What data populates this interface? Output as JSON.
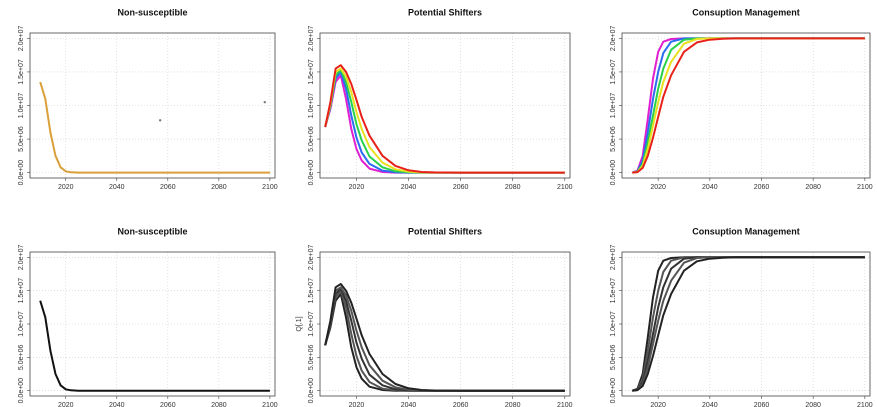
{
  "chart_data": [
    {
      "type": "line",
      "title": "Non-susceptible",
      "x": [
        2008,
        2010,
        2012,
        2014,
        2016,
        2018,
        2020,
        2022,
        2025,
        2030,
        2035,
        2040,
        2045,
        2050,
        2060,
        2080,
        2100
      ],
      "series": [
        {
          "color": "#d9a03a",
          "values": [
            null,
            13500000,
            11000000,
            6000000,
            2500000,
            800000,
            200000,
            50000,
            0,
            0,
            0,
            0,
            0,
            0,
            0,
            0,
            0
          ]
        }
      ],
      "points": {
        "x": [
          2057,
          2098
        ],
        "y": [
          7800000,
          10500000
        ],
        "color": "#777777"
      },
      "xlim": [
        2006,
        2102
      ],
      "ylim": [
        -800000,
        20800000
      ],
      "xticks": [
        2020,
        2040,
        2060,
        2080,
        2100
      ],
      "yticks": [
        {
          "value": 0,
          "label": "0.0e+00"
        },
        {
          "value": 5000000,
          "label": "5.0e+06"
        },
        {
          "value": 10000000,
          "label": "1.0e+07"
        },
        {
          "value": 15000000,
          "label": "1.5e+07"
        },
        {
          "value": 20000000,
          "label": "2.0e+07"
        }
      ],
      "grid": true
    },
    {
      "type": "line",
      "title": "Potential Shifters",
      "x": [
        2008,
        2010,
        2012,
        2014,
        2016,
        2018,
        2020,
        2022,
        2025,
        2030,
        2035,
        2040,
        2045,
        2050,
        2060,
        2080,
        2100
      ],
      "series": [
        {
          "color": "#e01fd0",
          "values": [
            6800000,
            9500000,
            13500000,
            14500000,
            11000000,
            6500000,
            3500000,
            1800000,
            600000,
            100000,
            0,
            0,
            0,
            0,
            0,
            0,
            0
          ]
        },
        {
          "color": "#2a6cf0",
          "values": [
            6800000,
            9800000,
            14000000,
            15000000,
            12500000,
            8500000,
            5200000,
            3000000,
            1300000,
            300000,
            50000,
            0,
            0,
            0,
            0,
            0,
            0
          ]
        },
        {
          "color": "#27d14a",
          "values": [
            6800000,
            10000000,
            14500000,
            15300000,
            13500000,
            10500000,
            7200000,
            4800000,
            2400000,
            800000,
            200000,
            50000,
            0,
            0,
            0,
            0,
            0
          ]
        },
        {
          "color": "#e8e020",
          "values": [
            6800000,
            10200000,
            15000000,
            15500000,
            14300000,
            12000000,
            9000000,
            6500000,
            3800000,
            1500000,
            500000,
            150000,
            30000,
            0,
            0,
            0,
            0
          ]
        },
        {
          "color": "#e8201a",
          "values": [
            6800000,
            10500000,
            15500000,
            16000000,
            15000000,
            13200000,
            10800000,
            8300000,
            5500000,
            2500000,
            1000000,
            350000,
            100000,
            30000,
            0,
            0,
            0
          ]
        }
      ],
      "xlim": [
        2006,
        2102
      ],
      "ylim": [
        -800000,
        20800000
      ],
      "xticks": [
        2020,
        2040,
        2060,
        2080,
        2100
      ],
      "yticks": [
        {
          "value": 0,
          "label": "0.0e+00"
        },
        {
          "value": 5000000,
          "label": "5.0e+06"
        },
        {
          "value": 10000000,
          "label": "1.0e+07"
        },
        {
          "value": 15000000,
          "label": "1.5e+07"
        },
        {
          "value": 20000000,
          "label": "2.0e+07"
        }
      ],
      "grid": true
    },
    {
      "type": "line",
      "title": "Consuption Management",
      "x": [
        2008,
        2010,
        2012,
        2014,
        2016,
        2018,
        2020,
        2022,
        2025,
        2030,
        2035,
        2040,
        2045,
        2050,
        2060,
        2080,
        2100
      ],
      "series": [
        {
          "color": "#e01fd0",
          "values": [
            null,
            0,
            300000,
            2500000,
            8000000,
            14000000,
            18000000,
            19500000,
            19900000,
            20000000,
            20000000,
            20000000,
            20000000,
            20000000,
            20000000,
            20000000,
            20000000
          ]
        },
        {
          "color": "#2a6cf0",
          "values": [
            null,
            0,
            200000,
            1800000,
            6000000,
            11000000,
            15000000,
            17800000,
            19500000,
            20000000,
            20000000,
            20000000,
            20000000,
            20000000,
            20000000,
            20000000,
            20000000
          ]
        },
        {
          "color": "#27d14a",
          "values": [
            null,
            0,
            150000,
            1300000,
            4500000,
            8500000,
            12500000,
            15500000,
            18300000,
            19800000,
            20000000,
            20000000,
            20000000,
            20000000,
            20000000,
            20000000,
            20000000
          ]
        },
        {
          "color": "#e8e020",
          "values": [
            null,
            0,
            100000,
            1000000,
            3500000,
            7000000,
            10500000,
            13500000,
            16500000,
            19200000,
            19900000,
            20000000,
            20000000,
            20000000,
            20000000,
            20000000,
            20000000
          ]
        },
        {
          "color": "#e8201a",
          "values": [
            null,
            0,
            80000,
            700000,
            2500000,
            5200000,
            8300000,
            11300000,
            14500000,
            18000000,
            19400000,
            19800000,
            19950000,
            20000000,
            20000000,
            20000000,
            20000000
          ]
        }
      ],
      "xlim": [
        2006,
        2102
      ],
      "ylim": [
        -800000,
        20800000
      ],
      "xticks": [
        2020,
        2040,
        2060,
        2080,
        2100
      ],
      "yticks": [
        {
          "value": 0,
          "label": "0.0e+00"
        },
        {
          "value": 5000000,
          "label": "5.0e+06"
        },
        {
          "value": 10000000,
          "label": "1.0e+07"
        },
        {
          "value": 15000000,
          "label": "1.5e+07"
        },
        {
          "value": 20000000,
          "label": "2.0e+07"
        }
      ],
      "grid": true
    },
    {
      "type": "line",
      "title": "Non-susceptible",
      "x": [
        2008,
        2010,
        2012,
        2014,
        2016,
        2018,
        2020,
        2022,
        2025,
        2030,
        2035,
        2040,
        2045,
        2050,
        2060,
        2080,
        2100
      ],
      "series": [
        {
          "color": "#111111",
          "values": [
            null,
            13500000,
            11000000,
            6000000,
            2500000,
            800000,
            200000,
            50000,
            0,
            0,
            0,
            0,
            0,
            0,
            0,
            0,
            0
          ]
        }
      ],
      "xlim": [
        2006,
        2102
      ],
      "ylim": [
        -800000,
        20800000
      ],
      "xticks": [
        2020,
        2040,
        2060,
        2080,
        2100
      ],
      "yticks": [
        {
          "value": 0,
          "label": "0.0e+00"
        },
        {
          "value": 5000000,
          "label": "5.0e+06"
        },
        {
          "value": 10000000,
          "label": "1.0e+07"
        },
        {
          "value": 15000000,
          "label": "1.5e+07"
        },
        {
          "value": 20000000,
          "label": "2.0e+07"
        }
      ],
      "grid": true
    },
    {
      "type": "line",
      "title": "Potential Shifters",
      "ylabel": "Q[,1]",
      "x": [
        2008,
        2010,
        2012,
        2014,
        2016,
        2018,
        2020,
        2022,
        2025,
        2030,
        2035,
        2040,
        2045,
        2050,
        2060,
        2080,
        2100
      ],
      "series": [
        {
          "color": "#222222",
          "values": [
            6800000,
            9500000,
            13500000,
            14500000,
            11000000,
            6500000,
            3500000,
            1800000,
            600000,
            100000,
            0,
            0,
            0,
            0,
            0,
            0,
            0
          ]
        },
        {
          "color": "#555555",
          "values": [
            6800000,
            9800000,
            14000000,
            15000000,
            12500000,
            8500000,
            5200000,
            3000000,
            1300000,
            300000,
            50000,
            0,
            0,
            0,
            0,
            0,
            0
          ]
        },
        {
          "color": "#333333",
          "values": [
            6800000,
            10000000,
            14500000,
            15300000,
            13500000,
            10500000,
            7200000,
            4800000,
            2400000,
            800000,
            200000,
            50000,
            0,
            0,
            0,
            0,
            0
          ]
        },
        {
          "color": "#555555",
          "values": [
            6800000,
            10200000,
            15000000,
            15500000,
            14300000,
            12000000,
            9000000,
            6500000,
            3800000,
            1500000,
            500000,
            150000,
            30000,
            0,
            0,
            0,
            0
          ]
        },
        {
          "color": "#222222",
          "values": [
            6800000,
            10500000,
            15500000,
            16000000,
            15000000,
            13200000,
            10800000,
            8300000,
            5500000,
            2500000,
            1000000,
            350000,
            100000,
            30000,
            0,
            0,
            0
          ]
        }
      ],
      "xlim": [
        2006,
        2102
      ],
      "ylim": [
        -800000,
        20800000
      ],
      "xticks": [
        2020,
        2040,
        2060,
        2080,
        2100
      ],
      "yticks": [
        {
          "value": 0,
          "label": "0.0e+00"
        },
        {
          "value": 5000000,
          "label": "5.0e+06"
        },
        {
          "value": 10000000,
          "label": "1.0e+07"
        },
        {
          "value": 15000000,
          "label": "1.5e+07"
        },
        {
          "value": 20000000,
          "label": "2.0e+07"
        }
      ],
      "grid": true
    },
    {
      "type": "line",
      "title": "Consuption Management",
      "x": [
        2008,
        2010,
        2012,
        2014,
        2016,
        2018,
        2020,
        2022,
        2025,
        2030,
        2035,
        2040,
        2045,
        2050,
        2060,
        2080,
        2100
      ],
      "series": [
        {
          "color": "#222222",
          "values": [
            null,
            0,
            300000,
            2500000,
            8000000,
            14000000,
            18000000,
            19500000,
            19900000,
            20000000,
            20000000,
            20000000,
            20000000,
            20000000,
            20000000,
            20000000,
            20000000
          ]
        },
        {
          "color": "#555555",
          "values": [
            null,
            0,
            200000,
            1800000,
            6000000,
            11000000,
            15000000,
            17800000,
            19500000,
            20000000,
            20000000,
            20000000,
            20000000,
            20000000,
            20000000,
            20000000,
            20000000
          ]
        },
        {
          "color": "#333333",
          "values": [
            null,
            0,
            150000,
            1300000,
            4500000,
            8500000,
            12500000,
            15500000,
            18300000,
            19800000,
            20000000,
            20000000,
            20000000,
            20000000,
            20000000,
            20000000,
            20000000
          ]
        },
        {
          "color": "#555555",
          "values": [
            null,
            0,
            100000,
            1000000,
            3500000,
            7000000,
            10500000,
            13500000,
            16500000,
            19200000,
            19900000,
            20000000,
            20000000,
            20000000,
            20000000,
            20000000,
            20000000
          ]
        },
        {
          "color": "#222222",
          "values": [
            null,
            0,
            80000,
            700000,
            2500000,
            5200000,
            8300000,
            11300000,
            14500000,
            18000000,
            19400000,
            19800000,
            19950000,
            20000000,
            20000000,
            20000000,
            20000000
          ]
        }
      ],
      "xlim": [
        2006,
        2102
      ],
      "ylim": [
        -800000,
        20800000
      ],
      "xticks": [
        2020,
        2040,
        2060,
        2080,
        2100
      ],
      "yticks": [
        {
          "value": 0,
          "label": "0.0e+00"
        },
        {
          "value": 5000000,
          "label": "5.0e+06"
        },
        {
          "value": 10000000,
          "label": "1.0e+07"
        },
        {
          "value": 15000000,
          "label": "1.5e+07"
        },
        {
          "value": 20000000,
          "label": "2.0e+07"
        }
      ],
      "grid": true
    }
  ]
}
